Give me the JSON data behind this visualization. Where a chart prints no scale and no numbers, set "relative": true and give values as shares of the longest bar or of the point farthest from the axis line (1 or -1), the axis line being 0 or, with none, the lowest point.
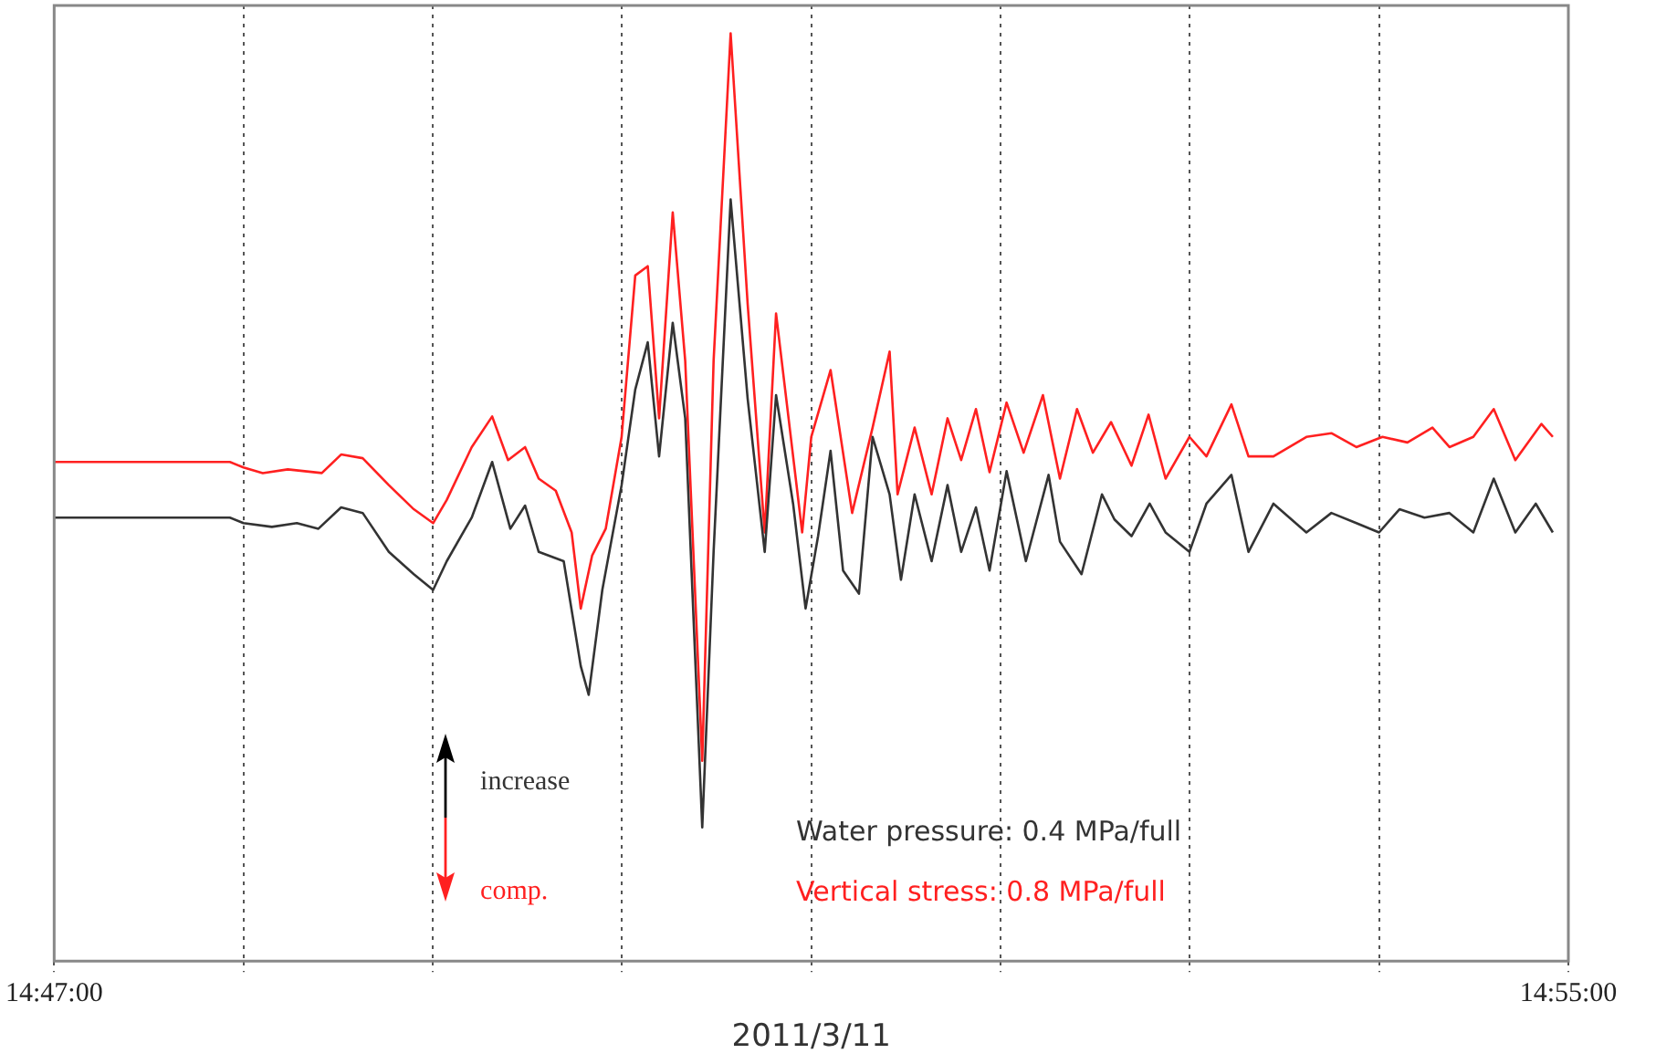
{
  "chart_data": {
    "type": "line",
    "relative": true,
    "xlabel": "2011/3/11",
    "xlim": [
      14.78333,
      14.91667
    ],
    "xticks": [
      {
        "value": 14.78333,
        "label": "14:47:00"
      },
      {
        "value": 14.8,
        "label": null
      },
      {
        "value": 14.81667,
        "label": null
      },
      {
        "value": 14.83333,
        "label": null
      },
      {
        "value": 14.85,
        "label": null
      },
      {
        "value": 14.86667,
        "label": null
      },
      {
        "value": 14.88333,
        "label": null
      },
      {
        "value": 14.9,
        "label": null
      },
      {
        "value": 14.91667,
        "label": "14:55:00"
      }
    ],
    "grid": "x",
    "legend": "bottom",
    "marker": "none",
    "line_style": "solid",
    "annotations": [
      "increase",
      "comp."
    ],
    "series": [
      {
        "name": "Water pressure: 0.4 MPa/full",
        "color": "#333333",
        "x": [
          14.78333,
          14.7988,
          14.8,
          14.8025,
          14.8047,
          14.8066,
          14.8086,
          14.8105,
          14.8128,
          14.815,
          14.8167,
          14.8179,
          14.8201,
          14.8219,
          14.8235,
          14.8248,
          14.826,
          14.8282,
          14.8297,
          14.8304,
          14.8316,
          14.8333,
          14.8345,
          14.8356,
          14.8366,
          14.8378,
          14.8389,
          14.8404,
          14.8414,
          14.8429,
          14.8444,
          14.8459,
          14.8469,
          14.8484,
          14.8495,
          14.8506,
          14.8517,
          14.8528,
          14.8542,
          14.8554,
          14.8569,
          14.8579,
          14.8591,
          14.8606,
          14.862,
          14.8632,
          14.8645,
          14.8657,
          14.8672,
          14.8689,
          14.8709,
          14.8719,
          14.8738,
          14.8756,
          14.8767,
          14.8782,
          14.8798,
          14.8812,
          14.8833,
          14.8848,
          14.887,
          14.8885,
          14.8907,
          14.8936,
          14.8958,
          14.898,
          14.9,
          14.9018,
          14.904,
          14.9062,
          14.9083,
          14.9101,
          14.912,
          14.9138,
          14.9153
        ],
        "values": [
          0.478,
          0.478,
          0.472,
          0.468,
          0.472,
          0.466,
          0.489,
          0.483,
          0.441,
          0.417,
          0.4,
          0.431,
          0.478,
          0.538,
          0.466,
          0.491,
          0.441,
          0.431,
          0.318,
          0.287,
          0.4,
          0.513,
          0.616,
          0.667,
          0.544,
          0.688,
          0.585,
          0.144,
          0.441,
          0.821,
          0.606,
          0.441,
          0.61,
          0.493,
          0.38,
          0.458,
          0.55,
          0.421,
          0.396,
          0.565,
          0.503,
          0.411,
          0.503,
          0.431,
          0.513,
          0.441,
          0.489,
          0.421,
          0.528,
          0.431,
          0.524,
          0.452,
          0.417,
          0.503,
          0.476,
          0.458,
          0.493,
          0.462,
          0.441,
          0.493,
          0.524,
          0.441,
          0.493,
          0.462,
          0.483,
          0.472,
          0.462,
          0.487,
          0.478,
          0.483,
          0.462,
          0.52,
          0.462,
          0.493,
          0.462
        ]
      },
      {
        "name": "Vertical stress: 0.8 MPa/full",
        "color": "#ff2020",
        "x": [
          14.78333,
          14.7988,
          14.8,
          14.8017,
          14.8039,
          14.8069,
          14.8086,
          14.8105,
          14.8128,
          14.815,
          14.8167,
          14.8179,
          14.8201,
          14.8219,
          14.8233,
          14.8248,
          14.826,
          14.8275,
          14.8289,
          14.8297,
          14.8307,
          14.8319,
          14.8333,
          14.8345,
          14.8356,
          14.8366,
          14.8378,
          14.8389,
          14.8404,
          14.8414,
          14.8429,
          14.8444,
          14.8459,
          14.8469,
          14.8481,
          14.8492,
          14.85,
          14.8517,
          14.8536,
          14.8554,
          14.8569,
          14.8576,
          14.8591,
          14.8606,
          14.862,
          14.8632,
          14.8645,
          14.8657,
          14.8672,
          14.8687,
          14.8704,
          14.8719,
          14.8734,
          14.8748,
          14.8764,
          14.8782,
          14.8797,
          14.8812,
          14.8833,
          14.8848,
          14.887,
          14.8885,
          14.8907,
          14.8936,
          14.8958,
          14.898,
          14.9003,
          14.9025,
          14.9047,
          14.9062,
          14.9083,
          14.9101,
          14.912,
          14.9143,
          14.9153
        ],
        "values": [
          0.538,
          0.538,
          0.532,
          0.526,
          0.53,
          0.526,
          0.546,
          0.542,
          0.513,
          0.487,
          0.472,
          0.497,
          0.554,
          0.587,
          0.54,
          0.554,
          0.52,
          0.507,
          0.462,
          0.38,
          0.437,
          0.466,
          0.565,
          0.739,
          0.749,
          0.585,
          0.807,
          0.647,
          0.216,
          0.647,
          1,
          0.708,
          0.462,
          0.698,
          0.575,
          0.462,
          0.565,
          0.637,
          0.483,
          0.575,
          0.657,
          0.503,
          0.575,
          0.503,
          0.585,
          0.54,
          0.595,
          0.527,
          0.602,
          0.548,
          0.61,
          0.52,
          0.595,
          0.548,
          0.581,
          0.534,
          0.589,
          0.52,
          0.565,
          0.544,
          0.6,
          0.544,
          0.544,
          0.565,
          0.569,
          0.554,
          0.565,
          0.559,
          0.575,
          0.554,
          0.565,
          0.595,
          0.54,
          0.579,
          0.565
        ]
      }
    ]
  }
}
